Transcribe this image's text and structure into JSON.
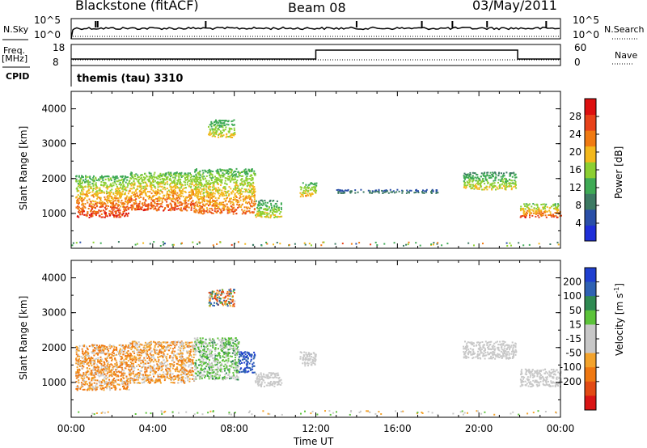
{
  "header": {
    "station": "Blackstone (fitACF)",
    "beam": "Beam 08",
    "date": "03/May/2011"
  },
  "panels": {
    "nsky": {
      "label": "N.Sky",
      "top": "10^5",
      "bottom": "10^0"
    },
    "freq": {
      "label_1": "Freq.",
      "label_2": "[MHz]",
      "top": "18",
      "bottom": "8"
    },
    "nsearch": {
      "label": "N.Search",
      "top": "10^5",
      "bottom": "10^0"
    },
    "nave": {
      "label": "Nave",
      "top": "60",
      "bottom": "0"
    },
    "cpid": {
      "label": "CPID",
      "text": "themis (tau) 3310"
    }
  },
  "colors": {
    "power": [
      "#1f2fd8",
      "#2a4fa8",
      "#3d7a63",
      "#3faa55",
      "#8ccf32",
      "#f3b81d",
      "#f07a12",
      "#e8421a",
      "#dd1010"
    ],
    "velocity": [
      "#2040d0",
      "#2f62b3",
      "#2f8a52",
      "#5cc33a",
      "#c8c8c8",
      "#c8c8c8",
      "#f3a32c",
      "#ef7812",
      "#e24a14",
      "#d91515"
    ]
  },
  "chart_data": [
    {
      "type": "heatmap",
      "name": "power",
      "xlabel": "",
      "ylabel": "Slant Range [km]",
      "ylim": [
        0,
        4500
      ],
      "yticks": [
        "1000",
        "2000",
        "3000",
        "4000"
      ],
      "colorbar_label": "Power [dB]",
      "colorbar_ticks": [
        "4",
        "8",
        "12",
        "16",
        "20",
        "24",
        "28"
      ],
      "colorbar_range": [
        0,
        32
      ],
      "features": [
        {
          "x_range_h": [
            0.2,
            2.8
          ],
          "slant_km": [
            900,
            2100
          ],
          "value_db": [
            6,
            30
          ]
        },
        {
          "x_range_h": [
            2.8,
            6.0
          ],
          "slant_km": [
            1100,
            2200
          ],
          "value_db": [
            8,
            28
          ]
        },
        {
          "x_range_h": [
            6.0,
            9.0
          ],
          "slant_km": [
            1000,
            2300
          ],
          "value_db": [
            8,
            26
          ]
        },
        {
          "x_range_h": [
            9.0,
            10.3
          ],
          "slant_km": [
            900,
            1400
          ],
          "value_db": [
            6,
            20
          ]
        },
        {
          "x_range_h": [
            6.7,
            8.0
          ],
          "slant_km": [
            3200,
            3700
          ],
          "value_db": [
            8,
            20
          ]
        },
        {
          "x_range_h": [
            11.2,
            12.0
          ],
          "slant_km": [
            1500,
            1900
          ],
          "value_db": [
            8,
            22
          ]
        },
        {
          "x_range_h": [
            13.0,
            18.0
          ],
          "slant_km": [
            1600,
            1700
          ],
          "value_db": [
            4,
            10
          ]
        },
        {
          "x_range_h": [
            19.2,
            21.8
          ],
          "slant_km": [
            1700,
            2200
          ],
          "value_db": [
            6,
            20
          ]
        },
        {
          "x_range_h": [
            22.0,
            24.0
          ],
          "slant_km": [
            900,
            1300
          ],
          "value_db": [
            8,
            28
          ]
        }
      ]
    },
    {
      "type": "heatmap",
      "name": "velocity",
      "xlabel": "Time UT",
      "ylabel": "Slant Range [km]",
      "ylim": [
        0,
        4500
      ],
      "yticks": [
        "1000",
        "2000",
        "3000",
        "4000"
      ],
      "xticks": [
        "00:00",
        "04:00",
        "08:00",
        "12:00",
        "16:00",
        "20:00",
        "00:00"
      ],
      "xlim_h": [
        0,
        24
      ],
      "colorbar_label": "Velocity [m s^-1]",
      "colorbar_ticks": [
        "200",
        "100",
        "50",
        "15",
        "-15",
        "-50",
        "-100",
        "-200"
      ],
      "features": [
        {
          "x_range_h": [
            0.2,
            2.8
          ],
          "slant_km": [
            800,
            2100
          ],
          "value_ms": [
            -100,
            15
          ]
        },
        {
          "x_range_h": [
            2.8,
            6.0
          ],
          "slant_km": [
            1000,
            2200
          ],
          "value_ms": [
            -80,
            15
          ]
        },
        {
          "x_range_h": [
            6.0,
            8.2
          ],
          "slant_km": [
            1100,
            2300
          ],
          "value_ms": [
            -15,
            60
          ]
        },
        {
          "x_range_h": [
            8.2,
            9.0
          ],
          "slant_km": [
            1300,
            1900
          ],
          "value_ms": [
            100,
            250
          ]
        },
        {
          "x_range_h": [
            9.0,
            10.3
          ],
          "slant_km": [
            900,
            1300
          ],
          "value_ms": [
            -15,
            15
          ]
        },
        {
          "x_range_h": [
            6.7,
            8.0
          ],
          "slant_km": [
            3200,
            3700
          ],
          "value_ms": [
            -200,
            200
          ]
        },
        {
          "x_range_h": [
            11.2,
            12.0
          ],
          "slant_km": [
            1500,
            1900
          ],
          "value_ms": [
            -15,
            15
          ]
        },
        {
          "x_range_h": [
            19.2,
            21.8
          ],
          "slant_km": [
            1700,
            2200
          ],
          "value_ms": [
            -15,
            15
          ]
        },
        {
          "x_range_h": [
            22.0,
            24.0
          ],
          "slant_km": [
            900,
            1400
          ],
          "value_ms": [
            -15,
            15
          ]
        }
      ]
    }
  ]
}
